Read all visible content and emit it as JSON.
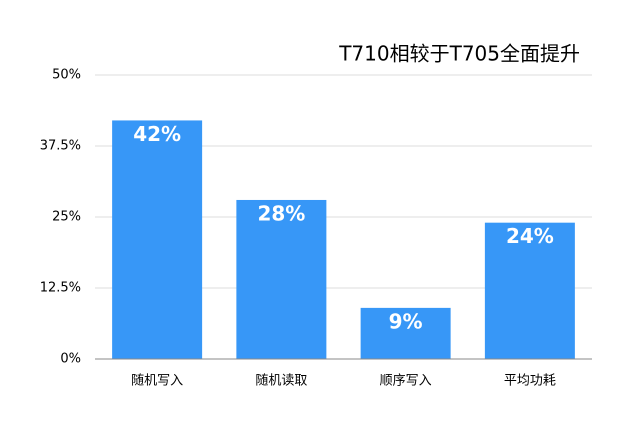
{
  "chart_data": {
    "type": "bar",
    "title": "T710相较于T705全面提升",
    "categories": [
      "随机写入",
      "随机读取",
      "顺序写入",
      "平均功耗"
    ],
    "values": [
      42,
      28,
      9,
      24
    ],
    "value_labels": [
      "42%",
      "28%",
      "9%",
      "24%"
    ],
    "color": "#3797f7",
    "ylim": [
      0,
      50
    ],
    "yticks": [
      {
        "value": 0,
        "label": "0%"
      },
      {
        "value": 12.5,
        "label": "12.5%"
      },
      {
        "value": 25,
        "label": "25%"
      },
      {
        "value": 37.5,
        "label": "37.5%"
      },
      {
        "value": 50,
        "label": "50%"
      }
    ],
    "grid": true
  }
}
